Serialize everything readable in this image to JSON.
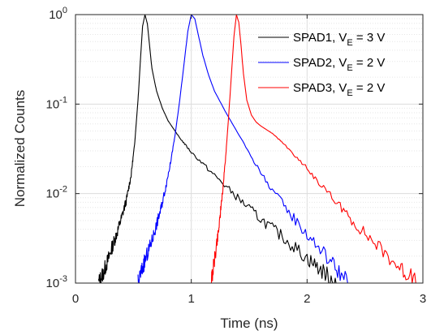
{
  "chart_data": {
    "type": "line",
    "title": "",
    "xlabel": "Time (ns)",
    "ylabel": "Normalized Counts",
    "xlim": [
      0,
      3
    ],
    "ylim": [
      0.001,
      1
    ],
    "yscale": "log",
    "grid": true,
    "legend_position": "top-right",
    "xticks": [
      0,
      1,
      2,
      3
    ],
    "xtick_labels": [
      "0",
      "1",
      "2",
      "3"
    ],
    "yticks": [
      {
        "value": 0.001,
        "base": "10",
        "exp": "-3"
      },
      {
        "value": 0.01,
        "base": "10",
        "exp": "-2"
      },
      {
        "value": 0.1,
        "base": "10",
        "exp": "-1"
      },
      {
        "value": 1,
        "base": "10",
        "exp": "0"
      }
    ],
    "series": [
      {
        "name_main": "SPAD1, V",
        "name_sub": "E",
        "name_tail": " = 3 V",
        "color": "#000000",
        "x": [
          0.2,
          0.24,
          0.28,
          0.32,
          0.36,
          0.4,
          0.44,
          0.48,
          0.51,
          0.54,
          0.56,
          0.58,
          0.6,
          0.62,
          0.64,
          0.66,
          0.7,
          0.75,
          0.8,
          0.9,
          1.0,
          1.2,
          1.4,
          1.6,
          1.8,
          2.0,
          2.15,
          2.25
        ],
        "y": [
          0.001,
          0.0013,
          0.0018,
          0.0026,
          0.0037,
          0.0055,
          0.0085,
          0.016,
          0.035,
          0.11,
          0.3,
          0.75,
          1.0,
          0.8,
          0.45,
          0.25,
          0.14,
          0.09,
          0.065,
          0.042,
          0.029,
          0.016,
          0.009,
          0.0052,
          0.0032,
          0.0019,
          0.0013,
          0.001
        ]
      },
      {
        "name_main": "SPAD2, V",
        "name_sub": "E",
        "name_tail": " = 2 V",
        "color": "#0000ff",
        "x": [
          0.54,
          0.58,
          0.62,
          0.66,
          0.7,
          0.74,
          0.78,
          0.82,
          0.86,
          0.9,
          0.94,
          0.97,
          1.0,
          1.03,
          1.06,
          1.1,
          1.15,
          1.2,
          1.3,
          1.4,
          1.6,
          1.8,
          2.0,
          2.2,
          2.35
        ],
        "y": [
          0.001,
          0.0015,
          0.0021,
          0.003,
          0.0045,
          0.007,
          0.012,
          0.022,
          0.045,
          0.11,
          0.3,
          0.65,
          1.0,
          0.9,
          0.6,
          0.35,
          0.21,
          0.14,
          0.08,
          0.048,
          0.017,
          0.0073,
          0.0035,
          0.0018,
          0.001
        ]
      },
      {
        "name_main": "SPAD3, V",
        "name_sub": "E",
        "name_tail": " = 2 V",
        "color": "#ff0000",
        "x": [
          1.17,
          1.2,
          1.23,
          1.26,
          1.29,
          1.32,
          1.35,
          1.37,
          1.39,
          1.41,
          1.43,
          1.45,
          1.48,
          1.52,
          1.56,
          1.6,
          1.7,
          1.8,
          2.0,
          2.2,
          2.4,
          2.6,
          2.8,
          2.95
        ],
        "y": [
          0.001,
          0.0018,
          0.0035,
          0.0075,
          0.02,
          0.065,
          0.25,
          0.6,
          1.0,
          0.82,
          0.45,
          0.22,
          0.11,
          0.075,
          0.063,
          0.057,
          0.047,
          0.036,
          0.019,
          0.0095,
          0.0048,
          0.0027,
          0.0015,
          0.001
        ]
      }
    ]
  }
}
